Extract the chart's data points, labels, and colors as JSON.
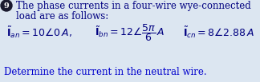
{
  "bg_color": "#dce6f1",
  "text_color": "#000080",
  "blue_text": "#0000cc",
  "line1": "The phase currents in a four-wire wye-connected",
  "line2": "load are as follows:",
  "eq1": "$\\tilde{\\mathbf{I}}_{an} = 10\\angle 0\\, A,$",
  "eq2": "$\\tilde{\\mathbf{I}}_{bn} = 12\\angle\\dfrac{5\\pi}{6}\\, A$",
  "eq3": "$\\tilde{\\mathbf{I}}_{cn} = 8\\angle 2.88\\, A$",
  "line3": "Determine the current in the neutral wire.",
  "bullet_num": "9",
  "font_size": 8.5,
  "font_size_eq": 9.0
}
